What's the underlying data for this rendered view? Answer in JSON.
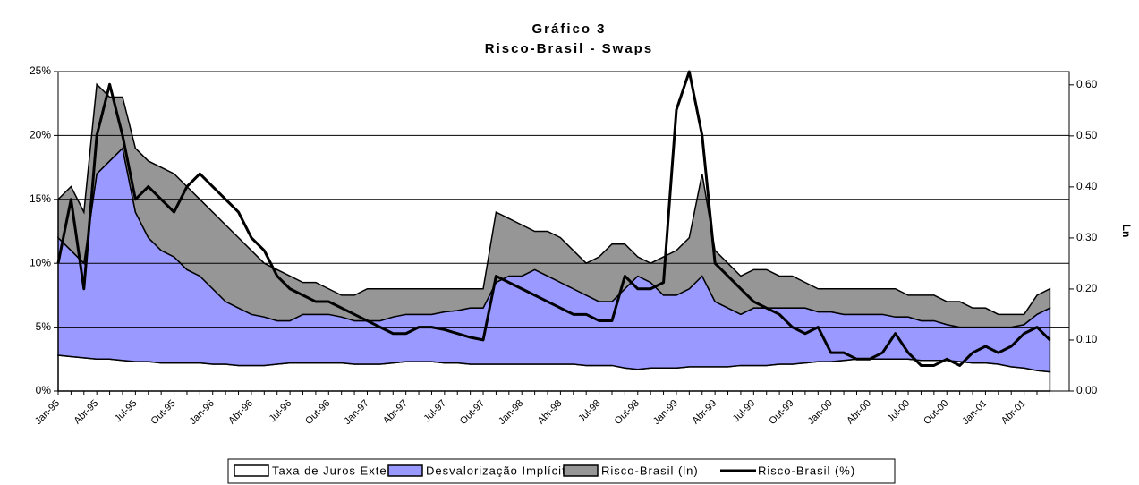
{
  "chart_data": {
    "type": "stacked_area_line",
    "title": "Gráfico 3",
    "subtitle": "Risco-Brasil - Swaps",
    "y2label": "Ln",
    "categories": [
      "Jan-95",
      null,
      null,
      "Abr-95",
      null,
      null,
      "Jul-95",
      null,
      null,
      "Out-95",
      null,
      null,
      "Jan-96",
      null,
      null,
      "Abr-96",
      null,
      null,
      "Jul-96",
      null,
      null,
      "Out-96",
      null,
      null,
      "Jan-97",
      null,
      null,
      "Abr-97",
      null,
      null,
      "Jul-97",
      null,
      null,
      "Out-97",
      null,
      null,
      "Jan-98",
      null,
      null,
      "Abr-98",
      null,
      null,
      "Jul-98",
      null,
      null,
      "Out-98",
      null,
      null,
      "Jan-99",
      null,
      null,
      "Abr-99",
      null,
      null,
      "Jul-99",
      null,
      null,
      "Out-99",
      null,
      null,
      "Jan-00",
      null,
      null,
      "Abr-00",
      null,
      null,
      "Jul-00",
      null,
      null,
      "Out-00",
      null,
      null,
      "Jan-01",
      null,
      null,
      "Abr-01",
      null,
      null
    ],
    "series": [
      {
        "name": "Taxa de Juros Externa",
        "color": "#ffffff",
        "kind": "area",
        "values": [
          2.8,
          2.7,
          2.6,
          2.5,
          2.5,
          2.4,
          2.3,
          2.3,
          2.2,
          2.2,
          2.2,
          2.2,
          2.1,
          2.1,
          2.0,
          2.0,
          2.0,
          2.1,
          2.2,
          2.2,
          2.2,
          2.2,
          2.2,
          2.1,
          2.1,
          2.1,
          2.2,
          2.3,
          2.3,
          2.3,
          2.2,
          2.2,
          2.1,
          2.1,
          2.1,
          2.1,
          2.1,
          2.1,
          2.1,
          2.1,
          2.1,
          2.0,
          2.0,
          2.0,
          1.8,
          1.7,
          1.8,
          1.8,
          1.8,
          1.9,
          1.9,
          1.9,
          1.9,
          2.0,
          2.0,
          2.0,
          2.1,
          2.1,
          2.2,
          2.3,
          2.3,
          2.4,
          2.5,
          2.5,
          2.5,
          2.5,
          2.5,
          2.4,
          2.4,
          2.4,
          2.3,
          2.2,
          2.2,
          2.1,
          1.9,
          1.8,
          1.6,
          1.5
        ]
      },
      {
        "name": "Desvalorização Implícita",
        "color": "#9999ff",
        "kind": "area",
        "values": [
          9.2,
          8.3,
          7.4,
          14.5,
          15.5,
          16.6,
          11.7,
          9.7,
          8.8,
          8.3,
          7.3,
          6.8,
          5.9,
          4.9,
          4.5,
          4.0,
          3.8,
          3.4,
          3.3,
          3.8,
          3.8,
          3.8,
          3.6,
          3.4,
          3.4,
          3.4,
          3.6,
          3.7,
          3.7,
          3.7,
          4.0,
          4.1,
          4.4,
          4.4,
          6.4,
          6.9,
          6.9,
          7.4,
          6.9,
          6.4,
          5.9,
          5.5,
          5.0,
          5.0,
          6.2,
          7.3,
          6.7,
          5.7,
          5.7,
          6.1,
          7.1,
          5.1,
          4.6,
          4.0,
          4.5,
          4.5,
          4.4,
          4.4,
          4.3,
          3.9,
          3.9,
          3.6,
          3.5,
          3.5,
          3.5,
          3.3,
          3.3,
          3.1,
          3.1,
          2.8,
          2.7,
          2.8,
          2.8,
          2.9,
          3.1,
          3.4,
          4.4,
          5.0
        ]
      },
      {
        "name": "Risco-Brasil (ln)",
        "color": "#969696",
        "kind": "area",
        "values": [
          3,
          5,
          4,
          7,
          5,
          4,
          5,
          6,
          6.5,
          6.5,
          6.5,
          6,
          6,
          6,
          5.5,
          5,
          4.2,
          4,
          3.5,
          2.5,
          2.5,
          2,
          1.7,
          2,
          2.5,
          2.5,
          2.2,
          2,
          2,
          2,
          1.8,
          1.7,
          1.5,
          1.5,
          5.5,
          4.5,
          4,
          3,
          3.5,
          3.5,
          3,
          2.5,
          3.5,
          4.5,
          3.5,
          1.5,
          1.5,
          3,
          3.5,
          4,
          8,
          4,
          3.5,
          3,
          3,
          3,
          2.5,
          2.5,
          2,
          1.8,
          1.8,
          2,
          2,
          2,
          2,
          2.2,
          1.7,
          2,
          2,
          1.8,
          2,
          1.5,
          1.5,
          1,
          1,
          0.8,
          1.5,
          1.5
        ]
      },
      {
        "name": "Risco-Brasil (%)",
        "color": "#000000",
        "kind": "line",
        "values": [
          10,
          15,
          8,
          20,
          24,
          20,
          15,
          16,
          15,
          14,
          16,
          17,
          16,
          15,
          14,
          12,
          11,
          9,
          8,
          7.5,
          7,
          7,
          6.5,
          6,
          5.5,
          5,
          4.5,
          4.5,
          5,
          5,
          4.8,
          4.5,
          4.2,
          4,
          9,
          8.5,
          8,
          7.5,
          7,
          6.5,
          6,
          6,
          5.5,
          5.5,
          9,
          8,
          8,
          8.5,
          22,
          25,
          20,
          10,
          9,
          8,
          7,
          6.5,
          6,
          5,
          4.5,
          5,
          3,
          3,
          2.5,
          2.5,
          3,
          4.5,
          3,
          2,
          2,
          2.5,
          2,
          3,
          3.5,
          3,
          3.5,
          4.5,
          5,
          4
        ]
      }
    ],
    "ylim": [
      0,
      25
    ],
    "yticks": [
      {
        "value": 0,
        "label": "0%"
      },
      {
        "value": 5,
        "label": "5%"
      },
      {
        "value": 10,
        "label": "10%"
      },
      {
        "value": 15,
        "label": "15%"
      },
      {
        "value": 20,
        "label": "20%"
      },
      {
        "value": 25,
        "label": "25%"
      }
    ],
    "y2lim": [
      0,
      0.626
    ],
    "y2ticks": [
      {
        "value": 0,
        "label": "0.00"
      },
      {
        "value": 0.1,
        "label": "0.10"
      },
      {
        "value": 0.2,
        "label": "0.20"
      },
      {
        "value": 0.3,
        "label": "0.30"
      },
      {
        "value": 0.4,
        "label": "0.40"
      },
      {
        "value": 0.5,
        "label": "0.50"
      },
      {
        "value": 0.6,
        "label": "0.60"
      }
    ],
    "grid": true
  }
}
